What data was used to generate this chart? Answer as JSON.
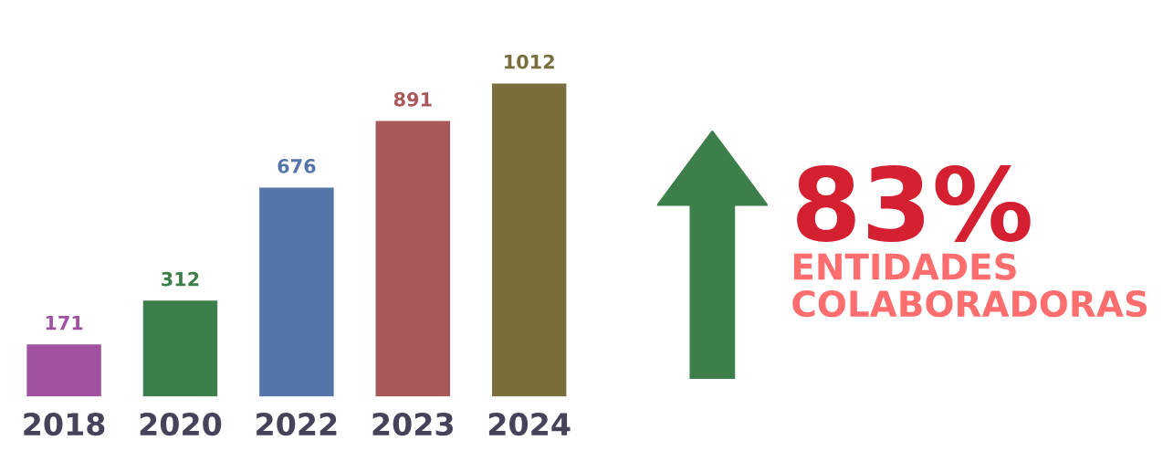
{
  "chart_data": {
    "type": "bar",
    "categories": [
      "2018",
      "2020",
      "2022",
      "2023",
      "2024"
    ],
    "values": [
      171,
      312,
      676,
      891,
      1012
    ],
    "colors": [
      "#a052a0",
      "#3d7f4a",
      "#5475a8",
      "#a85858",
      "#7a6e3c"
    ],
    "data_labels": true,
    "annotations": [
      "83%",
      "ENTIDADES\nCOLABORADORAS"
    ]
  }
}
